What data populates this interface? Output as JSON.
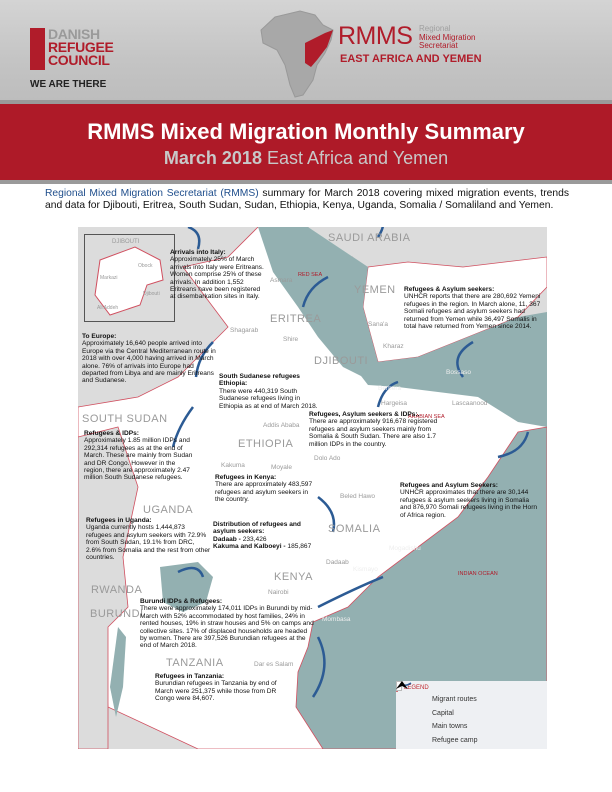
{
  "header": {
    "drc_logo": {
      "letters": "DRC",
      "line1": "DANISH",
      "line2": "REFUGEE",
      "line3": "COUNCIL",
      "tagline": "WE ARE THERE"
    },
    "rmms_logo": {
      "acronym": "RMMS",
      "line1": "Regional",
      "line2": "Mixed Migration",
      "line3": "Secretariat",
      "region": "EAST AFRICA AND YEMEN"
    }
  },
  "title": {
    "main": "RMMS Mixed Migration Monthly Summary",
    "month": "March 2018",
    "region": "East Africa and Yemen"
  },
  "intro": {
    "link": "Regional Mixed Migration Secretariat (RMMS)",
    "text": " summary for March 2018 covering mixed migration events, trends and data for Djibouti, Eritrea, South Sudan, Sudan, Ethiopia, Kenya, Uganda, Somalia / Somaliland and Yemen."
  },
  "colors": {
    "brand_red": "#ae1a28",
    "sea": "#93b0b1",
    "route_blue": "#2c5b94"
  },
  "map": {
    "countries": [
      "SAUDI ARABIA",
      "YEMEN",
      "ERITREA",
      "DJIBOUTI",
      "SOUTH SUDAN",
      "ETHIOPIA",
      "UGANDA",
      "SOMALIA",
      "KENYA",
      "RWANDA",
      "BURUNDI",
      "TANZANIA"
    ],
    "inset": {
      "title": "DJIBOUTI",
      "towns": [
        "Obock",
        "Markazi",
        "Djibouti",
        "Ali Addeh"
      ]
    },
    "seas": [
      "RED SEA",
      "ARABIAN SEA",
      "INDIAN OCEAN"
    ],
    "towns": [
      "Asmara",
      "Shagarab",
      "Shire",
      "Sana'a",
      "Kharaz",
      "Berbera",
      "Bossaso",
      "Hargeisa",
      "Lascaanood",
      "Addis Ababa",
      "Dolo Ado",
      "Beled Hawo",
      "Kakuma",
      "Moyale",
      "Dadaab",
      "Mogadishu",
      "Kismayo",
      "Nairobi",
      "Mombasa",
      "Dar es Salam"
    ],
    "notes": [
      {
        "title": "Arrivals into Italy:",
        "body": "Approximately 25% of March arrivals into Italy were Eritreans. Women comprise 25% of these arrivals. In addition 1,552 Eritreans have been registered at disembarkation sites in Italy."
      },
      {
        "title": "To Europe:",
        "body": "Approximately 16,640 people arrived into Europe via the Central Mediterranean route in 2018 with over 4,000 having arrived in March alone. 76% of arrivals into Europe had departed from Libya and are mainly Eritreans and Sudanese."
      },
      {
        "title": "South Sudanese refugees Ethiopia:",
        "body": "There were 440,319 South Sudanese refugees living in Ethiopia as at end of March 2018."
      },
      {
        "title": "Refugees & Asylum seekers:",
        "body": "UNHCR reports that there are 280,692 Yemeni refugees in the region. In March alone, 11, 367 Somali refugees and asylum seekers had returned from Yemen while 36,497 Somalis in total have returned from Yemen since 2014."
      },
      {
        "title": "Refugees, Asylum seekers & IDPs:.",
        "body": "There are approximately 916,678 registered refugees and asylum seekers mainly from Somalia & South Sudan. There are also 1.7 million IDPs in the country."
      },
      {
        "title": "Refugees & IDPs:",
        "body": "Approximately 1.85 million IDPs and 292,314 refugees as at the end of March.  These are mainly from Sudan and DR Congo. However in the region, there are approximately 2.47 million South Sudanese refugees."
      },
      {
        "title": "Refugees in Kenya:",
        "body": "There are approximately 483,597 refugees and asylum seekers in the country."
      },
      {
        "title": "Refugees and Asylum Seekers:",
        "body": "UNHCR approximates that there are 30,144 refugees & asylum seekers living in Somalia and 876,970 Somali refugees living in the Horn of Africa region."
      },
      {
        "title": "Refugees in Uganda:",
        "body": "Uganda currently hosts 1,444,873 refugees and asylum seekers with 72.9% from South Sudan, 19.1% from DRC, 2.6% from Somalia and the rest from other countries."
      },
      {
        "title": "Distribution of refugees and asylum seekers:",
        "rows": [
          {
            "camp": "Dadaab",
            "value": "233,426"
          },
          {
            "camp": "Kakuma and Kalboeyi",
            "value": "185,867"
          }
        ]
      },
      {
        "title": "Burundi IDPs & Refugees:",
        "body": "There were approximately 174,011 IDPs in Burundi by mid-March with 52% accommodated by host families, 24% in rented houses, 19% in straw houses and 5% on camps and collective sites. 17% of displaced households are headed by women. There are 397,526 Burundian refugees at the end of March 2018."
      },
      {
        "title": "Refugees in Tanzania:",
        "body": "Burundian refugees in Tanzania by end of March were 251,375 while those from DR Congo were 84,607."
      }
    ],
    "legend": {
      "title": "LEGEND",
      "items": [
        {
          "label": "Migrant routes",
          "icon": "route-arrow-icon"
        },
        {
          "label": "Capital",
          "icon": "flag-icon"
        },
        {
          "label": "Main towns",
          "icon": "building-icon"
        },
        {
          "label": "Refugee camp",
          "icon": "tent-icon"
        }
      ]
    }
  }
}
